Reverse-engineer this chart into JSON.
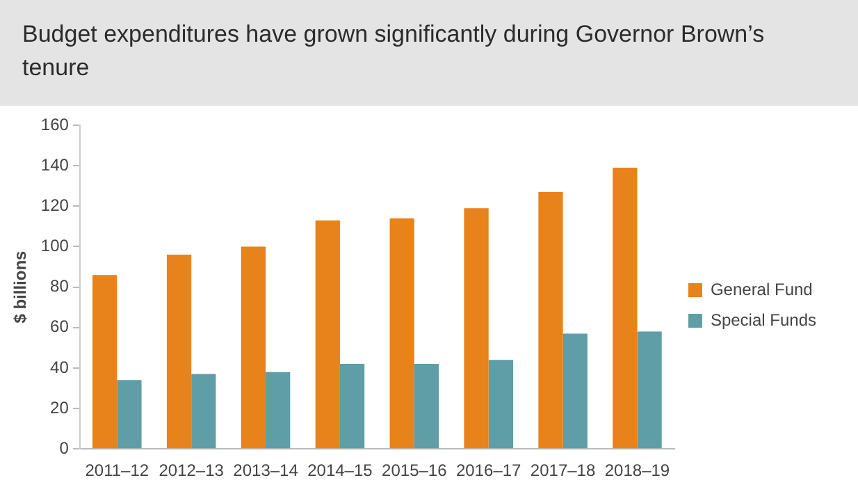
{
  "chart_data": {
    "type": "bar",
    "title": "Budget expenditures have grown significantly during Governor Brown’s tenure",
    "ylabel": "$ billions",
    "categories": [
      "2011–12",
      "2012–13",
      "2013–14",
      "2014–15",
      "2015–16",
      "2016–17",
      "2017–18",
      "2018–19"
    ],
    "series": [
      {
        "name": "General Fund",
        "color": "#e8821a",
        "values": [
          86,
          96,
          100,
          113,
          114,
          119,
          127,
          139
        ]
      },
      {
        "name": "Special Funds",
        "color": "#5f9ea6",
        "values": [
          34,
          37,
          38,
          42,
          42,
          44,
          57,
          58
        ]
      }
    ],
    "ylim": [
      0,
      160
    ],
    "yticks": [
      0,
      20,
      40,
      60,
      80,
      100,
      120,
      140,
      160
    ],
    "grid": false,
    "legend": "right"
  }
}
